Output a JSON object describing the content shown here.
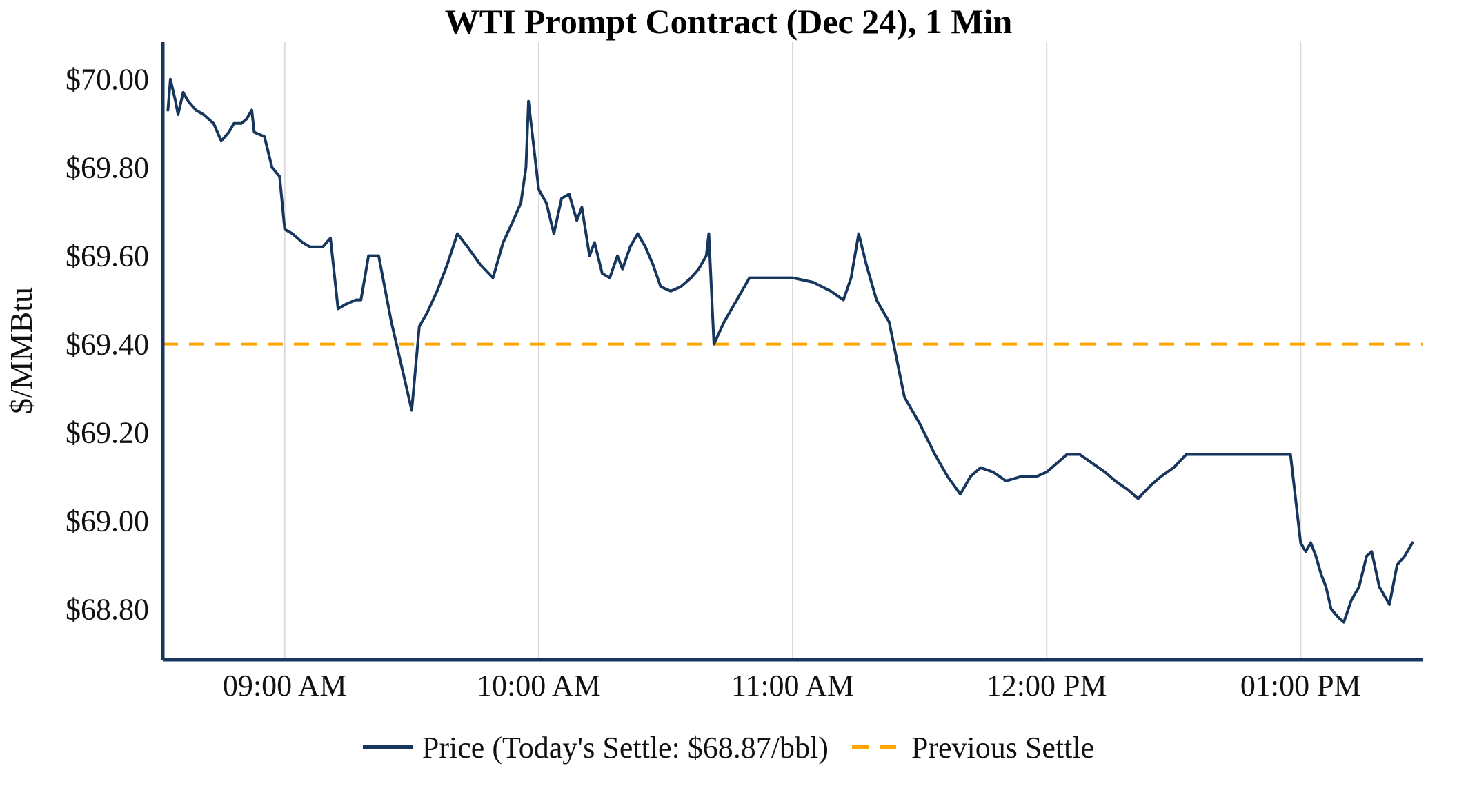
{
  "title": "WTI Prompt Contract (Dec 24), 1 Min",
  "colors": {
    "line": "#17365d",
    "settle": "#FFA500",
    "grid": "#d9d9d9",
    "axis": "#17365d",
    "text": "#111111"
  },
  "legend": {
    "price_label": "Price (Today's Settle: $68.87/bbl)",
    "settle_label": "Previous Settle"
  },
  "chart_data": {
    "type": "line",
    "title": "WTI Prompt Contract (Dec 24), 1 Min",
    "xlabel": "",
    "ylabel": "$/MMBtu",
    "xlim": [
      8.52,
      13.48
    ],
    "ylim": [
      68.685,
      70.084
    ],
    "grid": "vertical-only",
    "legend_position": "bottom",
    "previous_settle": 69.4,
    "todays_settle": 68.87,
    "x_ticks": [
      {
        "t": 9,
        "label": "09:00 AM"
      },
      {
        "t": 10,
        "label": "10:00 AM"
      },
      {
        "t": 11,
        "label": "11:00 AM"
      },
      {
        "t": 12,
        "label": "12:00 PM"
      },
      {
        "t": 13,
        "label": "01:00 PM"
      }
    ],
    "y_ticks": [
      {
        "v": 70.0,
        "label": "$70.00"
      },
      {
        "v": 69.8,
        "label": "$69.80"
      },
      {
        "v": 69.6,
        "label": "$69.60"
      },
      {
        "v": 69.4,
        "label": "$69.40"
      },
      {
        "v": 69.2,
        "label": "$69.20"
      },
      {
        "v": 69.0,
        "label": "$69.00"
      },
      {
        "v": 68.8,
        "label": "$68.80"
      }
    ],
    "series": [
      {
        "name": "Price",
        "points": [
          [
            8.54,
            69.93
          ],
          [
            8.55,
            70.0
          ],
          [
            8.57,
            69.95
          ],
          [
            8.58,
            69.92
          ],
          [
            8.6,
            69.97
          ],
          [
            8.62,
            69.95
          ],
          [
            8.65,
            69.93
          ],
          [
            8.68,
            69.92
          ],
          [
            8.72,
            69.9
          ],
          [
            8.75,
            69.86
          ],
          [
            8.78,
            69.88
          ],
          [
            8.8,
            69.9
          ],
          [
            8.83,
            69.9
          ],
          [
            8.85,
            69.91
          ],
          [
            8.87,
            69.93
          ],
          [
            8.88,
            69.88
          ],
          [
            8.92,
            69.87
          ],
          [
            8.95,
            69.8
          ],
          [
            8.98,
            69.78
          ],
          [
            9.0,
            69.66
          ],
          [
            9.03,
            69.65
          ],
          [
            9.07,
            69.63
          ],
          [
            9.1,
            69.62
          ],
          [
            9.15,
            69.62
          ],
          [
            9.18,
            69.64
          ],
          [
            9.21,
            69.48
          ],
          [
            9.24,
            69.49
          ],
          [
            9.28,
            69.5
          ],
          [
            9.3,
            69.5
          ],
          [
            9.33,
            69.6
          ],
          [
            9.37,
            69.6
          ],
          [
            9.42,
            69.45
          ],
          [
            9.46,
            69.35
          ],
          [
            9.5,
            69.25
          ],
          [
            9.53,
            69.44
          ],
          [
            9.56,
            69.47
          ],
          [
            9.6,
            69.52
          ],
          [
            9.64,
            69.58
          ],
          [
            9.68,
            69.65
          ],
          [
            9.72,
            69.62
          ],
          [
            9.77,
            69.58
          ],
          [
            9.82,
            69.55
          ],
          [
            9.86,
            69.63
          ],
          [
            9.9,
            69.68
          ],
          [
            9.93,
            69.72
          ],
          [
            9.95,
            69.8
          ],
          [
            9.96,
            69.95
          ],
          [
            9.98,
            69.85
          ],
          [
            10.0,
            69.75
          ],
          [
            10.03,
            69.72
          ],
          [
            10.06,
            69.65
          ],
          [
            10.09,
            69.73
          ],
          [
            10.12,
            69.74
          ],
          [
            10.15,
            69.68
          ],
          [
            10.17,
            69.71
          ],
          [
            10.2,
            69.6
          ],
          [
            10.22,
            69.63
          ],
          [
            10.25,
            69.56
          ],
          [
            10.28,
            69.55
          ],
          [
            10.31,
            69.6
          ],
          [
            10.33,
            69.57
          ],
          [
            10.36,
            69.62
          ],
          [
            10.39,
            69.65
          ],
          [
            10.42,
            69.62
          ],
          [
            10.45,
            69.58
          ],
          [
            10.48,
            69.53
          ],
          [
            10.52,
            69.52
          ],
          [
            10.56,
            69.53
          ],
          [
            10.6,
            69.55
          ],
          [
            10.63,
            69.57
          ],
          [
            10.66,
            69.6
          ],
          [
            10.67,
            69.65
          ],
          [
            10.69,
            69.4
          ],
          [
            10.73,
            69.45
          ],
          [
            10.78,
            69.5
          ],
          [
            10.83,
            69.55
          ],
          [
            10.9,
            69.55
          ],
          [
            11.0,
            69.55
          ],
          [
            11.08,
            69.54
          ],
          [
            11.15,
            69.52
          ],
          [
            11.2,
            69.5
          ],
          [
            11.23,
            69.55
          ],
          [
            11.26,
            69.65
          ],
          [
            11.29,
            69.58
          ],
          [
            11.33,
            69.5
          ],
          [
            11.38,
            69.45
          ],
          [
            11.44,
            69.28
          ],
          [
            11.5,
            69.22
          ],
          [
            11.56,
            69.15
          ],
          [
            11.61,
            69.1
          ],
          [
            11.66,
            69.06
          ],
          [
            11.7,
            69.1
          ],
          [
            11.74,
            69.12
          ],
          [
            11.79,
            69.11
          ],
          [
            11.84,
            69.09
          ],
          [
            11.9,
            69.1
          ],
          [
            11.96,
            69.1
          ],
          [
            12.0,
            69.11
          ],
          [
            12.04,
            69.13
          ],
          [
            12.08,
            69.15
          ],
          [
            12.13,
            69.15
          ],
          [
            12.18,
            69.13
          ],
          [
            12.23,
            69.11
          ],
          [
            12.27,
            69.09
          ],
          [
            12.32,
            69.07
          ],
          [
            12.36,
            69.05
          ],
          [
            12.41,
            69.08
          ],
          [
            12.45,
            69.1
          ],
          [
            12.5,
            69.12
          ],
          [
            12.55,
            69.15
          ],
          [
            12.65,
            69.15
          ],
          [
            12.75,
            69.15
          ],
          [
            12.85,
            69.15
          ],
          [
            12.96,
            69.15
          ],
          [
            13.0,
            68.95
          ],
          [
            13.02,
            68.93
          ],
          [
            13.04,
            68.95
          ],
          [
            13.06,
            68.92
          ],
          [
            13.08,
            68.88
          ],
          [
            13.1,
            68.85
          ],
          [
            13.12,
            68.8
          ],
          [
            13.15,
            68.78
          ],
          [
            13.17,
            68.77
          ],
          [
            13.2,
            68.82
          ],
          [
            13.23,
            68.85
          ],
          [
            13.26,
            68.92
          ],
          [
            13.28,
            68.93
          ],
          [
            13.31,
            68.85
          ],
          [
            13.33,
            68.83
          ],
          [
            13.35,
            68.81
          ],
          [
            13.38,
            68.9
          ],
          [
            13.41,
            68.92
          ],
          [
            13.44,
            68.95
          ]
        ]
      }
    ]
  }
}
